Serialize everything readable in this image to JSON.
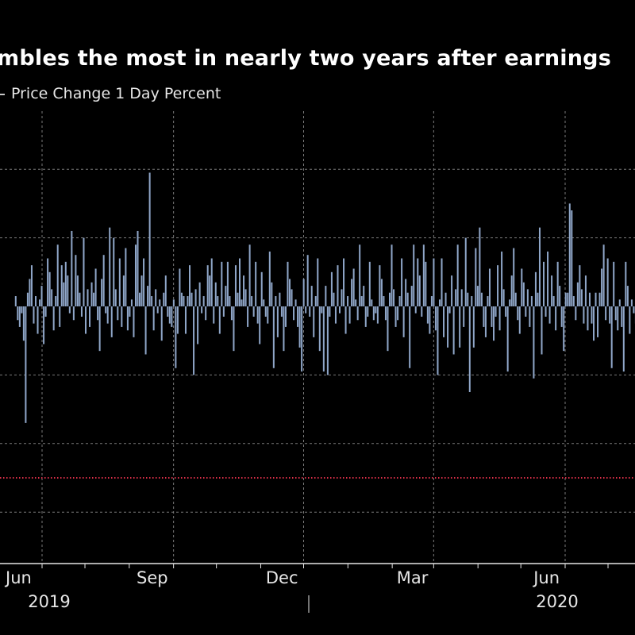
{
  "header": {
    "title": "mbles the most in nearly two years after earnings",
    "legend_label": "Price Change 1 Day Percent"
  },
  "colors": {
    "background": "#000000",
    "bar": "#8fa6c8",
    "grid": "#7a7a7a",
    "reference_line": "#e0304a",
    "axis": "#e6e6e6"
  },
  "chart_data": {
    "type": "bar",
    "title": "mbles the most in nearly two years after earnings",
    "xlabel": "",
    "ylabel": "",
    "legend": [
      "Price Change 1 Day Percent"
    ],
    "legend_placement": "top-left",
    "grid": true,
    "ylim": [
      -7.5,
      5.5
    ],
    "y_gridlines": [
      -6,
      -4,
      -2,
      0,
      2,
      4
    ],
    "reference_line": {
      "value": -5.0,
      "style": "dotted",
      "color": "#e0304a"
    },
    "x_start": "2019-05-13",
    "x_end": "2020-09-25",
    "x_tick_labels": [
      {
        "label": "Jun",
        "date": "2019-06-01"
      },
      {
        "label": "Sep",
        "date": "2019-09-01"
      },
      {
        "label": "Dec",
        "date": "2019-12-01"
      },
      {
        "label": "Mar",
        "date": "2020-03-01"
      },
      {
        "label": "Jun",
        "date": "2020-06-01"
      }
    ],
    "x_year_labels": [
      {
        "label": "2019",
        "date": "2019-07-01"
      },
      {
        "label": "2020",
        "date": "2020-07-01"
      }
    ],
    "series": [
      {
        "name": "Price Change 1 Day Percent",
        "values": [
          0.3,
          -0.4,
          -0.6,
          -0.2,
          -1.0,
          -3.4,
          0.4,
          0.8,
          1.2,
          -0.5,
          0.3,
          -0.8,
          0.2,
          0.6,
          -1.1,
          -0.3,
          1.4,
          1.0,
          0.5,
          -0.7,
          0.3,
          1.8,
          -0.6,
          1.2,
          0.7,
          1.3,
          0.9,
          -0.2,
          2.2,
          -0.4,
          1.5,
          0.9,
          0.4,
          -0.3,
          2.0,
          -0.8,
          0.5,
          -0.6,
          0.7,
          0.4,
          1.1,
          -0.4,
          -1.3,
          0.8,
          1.5,
          -0.2,
          -0.5,
          2.3,
          -0.9,
          2.0,
          0.5,
          -0.4,
          1.4,
          -0.6,
          0.9,
          1.7,
          -0.7,
          -0.3,
          0.2,
          -0.9,
          1.8,
          2.2,
          0.4,
          0.9,
          1.4,
          -1.4,
          0.6,
          3.9,
          0.3,
          -0.7,
          0.5,
          -0.2,
          0.2,
          -1.0,
          0.4,
          0.9,
          -0.3,
          -0.5,
          -0.6,
          0.2,
          -1.8,
          -0.8,
          1.1,
          0.4,
          0.3,
          -0.8,
          0.3,
          1.2,
          0.4,
          -2.0,
          0.5,
          -1.1,
          0.7,
          -0.2,
          0.3,
          -0.4,
          1.2,
          0.9,
          1.4,
          -0.5,
          0.7,
          0.3,
          -0.8,
          1.3,
          -0.3,
          0.6,
          1.3,
          0.3,
          -0.4,
          -1.3,
          1.2,
          0.4,
          1.4,
          0.2,
          0.9,
          0.5,
          -0.6,
          1.8,
          0.3,
          -0.3,
          1.3,
          -0.5,
          -1.1,
          1.0,
          0.2,
          -0.3,
          -0.5,
          1.6,
          0.7,
          -1.8,
          0.3,
          -0.9,
          0.4,
          -0.3,
          -1.3,
          -0.6,
          1.3,
          0.8,
          0.5,
          -0.4,
          0.2,
          -0.6,
          -1.2,
          -1.9,
          0.8,
          -0.2,
          1.5,
          -0.3,
          0.6,
          -0.9,
          0.3,
          1.4,
          -1.3,
          -0.2,
          -1.9,
          0.6,
          -2.0,
          -0.3,
          1.0,
          0.4,
          -0.5,
          1.2,
          -0.2,
          0.5,
          1.4,
          -0.8,
          0.3,
          -0.5,
          0.8,
          1.1,
          0.2,
          -0.4,
          1.8,
          0.3,
          0.6,
          -0.6,
          -0.3,
          1.3,
          0.2,
          -0.4,
          -0.2,
          -0.5,
          1.2,
          0.8,
          0.3,
          -0.4,
          -1.3,
          0.4,
          1.8,
          0.5,
          -0.6,
          -0.4,
          0.3,
          1.4,
          -0.9,
          0.8,
          0.4,
          -1.8,
          0.6,
          1.8,
          -0.2,
          1.4,
          0.9,
          -0.3,
          1.8,
          1.3,
          -0.5,
          -0.8,
          0.3,
          1.4,
          -0.7,
          -2.0,
          0.2,
          1.4,
          -0.9,
          0.4,
          -1.2,
          -0.2,
          0.9,
          -1.4,
          0.5,
          1.8,
          -1.2,
          0.5,
          -0.6,
          2.0,
          0.4,
          -2.5,
          0.3,
          -1.2,
          1.7,
          0.6,
          2.3,
          0.4,
          -0.6,
          -0.9,
          0.3,
          1.1,
          -0.6,
          -1.0,
          -0.3,
          1.2,
          -0.7,
          1.6,
          0.5,
          -0.3,
          -1.9,
          0.2,
          0.9,
          1.7,
          0.4,
          -0.4,
          -0.8,
          1.1,
          0.7,
          -0.3,
          0.5,
          -0.6,
          0.3,
          -2.1,
          1.0,
          0.4,
          2.3,
          -1.4,
          1.3,
          -0.3,
          1.6,
          -0.5,
          0.9,
          0.3,
          -0.7,
          1.3,
          0.6,
          -0.6,
          -1.3,
          0.4,
          0.4,
          3.0,
          2.8,
          0.3,
          -0.4,
          0.7,
          1.2,
          0.5,
          -0.5,
          0.9,
          -0.7,
          0.4,
          -0.5,
          -1.0,
          0.4,
          -0.9,
          0.4,
          1.1,
          1.8,
          -0.4,
          1.4,
          -0.5,
          -1.8,
          1.3,
          -0.4,
          -0.7,
          0.2,
          -0.6,
          -1.9,
          1.3,
          0.6,
          -0.8,
          0.2,
          -0.2,
          -0.5,
          0.7,
          0.4,
          1.2,
          -0.3,
          0.6,
          -1.8,
          -0.5,
          0.4,
          1.3,
          0.8,
          0.3,
          1.2,
          -1.0,
          -0.4,
          0.2,
          -1.7,
          -0.2,
          0.7,
          0.3,
          2.4,
          0.2,
          -1.9,
          2.2,
          3.4,
          -0.3,
          2.2,
          -3.4,
          -0.4,
          1.1,
          -0.4,
          -0.2,
          1.0,
          -0.9,
          -0.5,
          -0.3,
          -0.4,
          -1.3,
          -0.6,
          -2.0,
          0.4,
          0.2,
          0.3,
          -1.3,
          0.4,
          0.7,
          -0.7,
          0.5
        ]
      }
    ]
  }
}
